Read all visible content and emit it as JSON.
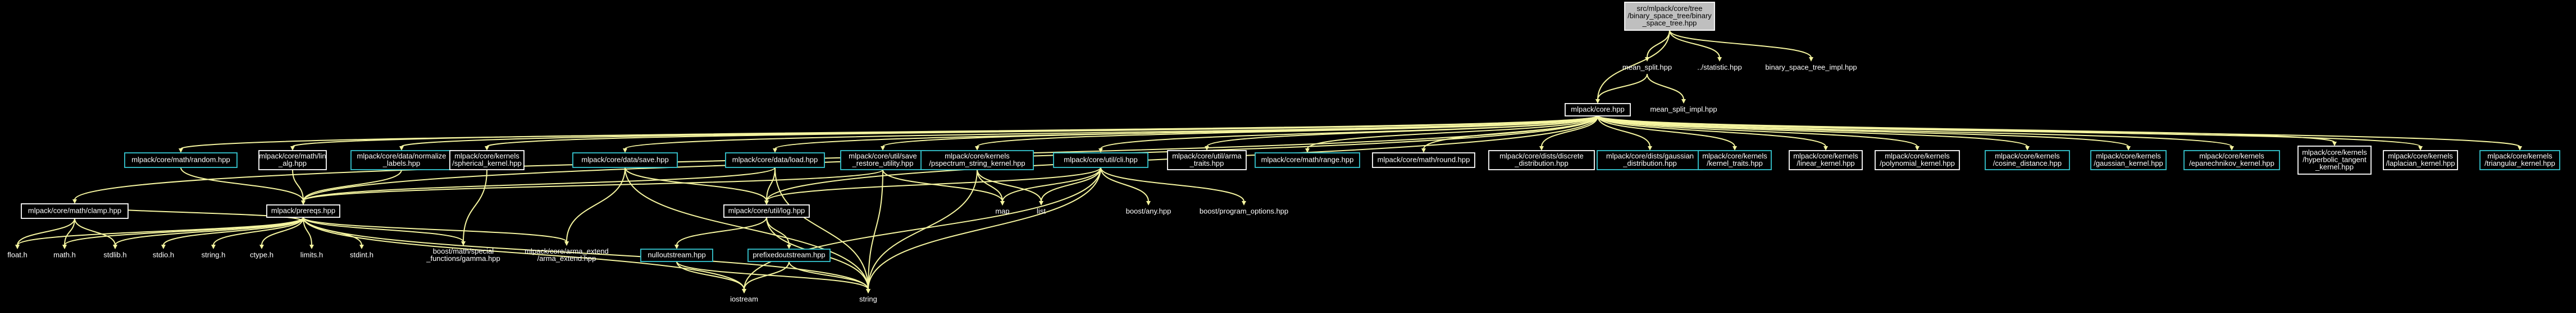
{
  "root": "src/mlpack/core/tree/binary_space_tree/binary_space_tree.hpp",
  "nodes": [
    {
      "id": "root",
      "lines": [
        "src/mlpack/core/tree",
        "/binary_space_tree/binary",
        "_space_tree.hpp"
      ],
      "style": "root"
    },
    {
      "id": "mean_split",
      "lines": [
        "mean_split.hpp"
      ],
      "style": "plain"
    },
    {
      "id": "statistic",
      "lines": [
        "../statistic.hpp"
      ],
      "style": "plain"
    },
    {
      "id": "bst_impl",
      "lines": [
        "binary_space_tree_impl.hpp"
      ],
      "style": "plain"
    },
    {
      "id": "core",
      "lines": [
        "mlpack/core.hpp"
      ],
      "style": "boxed"
    },
    {
      "id": "mean_split_impl",
      "lines": [
        "mean_split_impl.hpp"
      ],
      "style": "plain"
    },
    {
      "id": "random",
      "lines": [
        "mlpack/core/math/random.hpp"
      ],
      "style": "cyan"
    },
    {
      "id": "lin_alg",
      "lines": [
        "mlpack/core/math/lin",
        "_alg.hpp"
      ],
      "style": "boxed"
    },
    {
      "id": "normalize",
      "lines": [
        "mlpack/core/data/normalize",
        "_labels.hpp"
      ],
      "style": "cyan"
    },
    {
      "id": "spherical",
      "lines": [
        "mlpack/core/kernels",
        "/spherical_kernel.hpp"
      ],
      "style": "boxed"
    },
    {
      "id": "save",
      "lines": [
        "mlpack/core/data/save.hpp"
      ],
      "style": "cyan"
    },
    {
      "id": "load",
      "lines": [
        "mlpack/core/data/load.hpp"
      ],
      "style": "cyan"
    },
    {
      "id": "save_restore",
      "lines": [
        "mlpack/core/util/save",
        "_restore_utility.hpp"
      ],
      "style": "cyan"
    },
    {
      "id": "pspectrum",
      "lines": [
        "mlpack/core/kernels",
        "/pspectrum_string_kernel.hpp"
      ],
      "style": "cyan"
    },
    {
      "id": "cli",
      "lines": [
        "mlpack/core/util/cli.hpp"
      ],
      "style": "cyan"
    },
    {
      "id": "arma_traits",
      "lines": [
        "mlpack/core/util/arma",
        "_traits.hpp"
      ],
      "style": "boxed"
    },
    {
      "id": "range",
      "lines": [
        "mlpack/core/math/range.hpp"
      ],
      "style": "cyan"
    },
    {
      "id": "round",
      "lines": [
        "mlpack/core/math/round.hpp"
      ],
      "style": "boxed"
    },
    {
      "id": "discrete",
      "lines": [
        "mlpack/core/dists/discrete",
        "_distribution.hpp"
      ],
      "style": "boxed"
    },
    {
      "id": "gaussian_dist",
      "lines": [
        "mlpack/core/dists/gaussian",
        "_distribution.hpp"
      ],
      "style": "cyan"
    },
    {
      "id": "kernel_traits",
      "lines": [
        "mlpack/core/kernels",
        "/kernel_traits.hpp"
      ],
      "style": "cyan"
    },
    {
      "id": "linear",
      "lines": [
        "mlpack/core/kernels",
        "/linear_kernel.hpp"
      ],
      "style": "boxed"
    },
    {
      "id": "polynomial",
      "lines": [
        "mlpack/core/kernels",
        "/polynomial_kernel.hpp"
      ],
      "style": "boxed"
    },
    {
      "id": "cosine",
      "lines": [
        "mlpack/core/kernels",
        "/cosine_distance.hpp"
      ],
      "style": "cyan"
    },
    {
      "id": "gaussian_k",
      "lines": [
        "mlpack/core/kernels",
        "/gaussian_kernel.hpp"
      ],
      "style": "cyan"
    },
    {
      "id": "epan",
      "lines": [
        "mlpack/core/kernels",
        "/epanechnikov_kernel.hpp"
      ],
      "style": "cyan"
    },
    {
      "id": "hyper",
      "lines": [
        "mlpack/core/kernels",
        "/hyperbolic_tangent",
        "_kernel.hpp"
      ],
      "style": "boxed"
    },
    {
      "id": "laplace",
      "lines": [
        "mlpack/core/kernels",
        "/laplacian_kernel.hpp"
      ],
      "style": "boxed"
    },
    {
      "id": "triangular",
      "lines": [
        "mlpack/core/kernels",
        "/triangular_kernel.hpp"
      ],
      "style": "cyan"
    },
    {
      "id": "clamp",
      "lines": [
        "mlpack/core/math/clamp.hpp"
      ],
      "style": "boxed"
    },
    {
      "id": "prereqs",
      "lines": [
        "mlpack/prereqs.hpp"
      ],
      "style": "boxed"
    },
    {
      "id": "log",
      "lines": [
        "mlpack/core/util/log.hpp"
      ],
      "style": "boxed"
    },
    {
      "id": "map",
      "lines": [
        "map"
      ],
      "style": "plain"
    },
    {
      "id": "list",
      "lines": [
        "list"
      ],
      "style": "plain"
    },
    {
      "id": "boost_any",
      "lines": [
        "boost/any.hpp"
      ],
      "style": "plain"
    },
    {
      "id": "boost_po",
      "lines": [
        "boost/program_options.hpp"
      ],
      "style": "plain"
    },
    {
      "id": "nullostream",
      "lines": [
        "nulloutstream.hpp"
      ],
      "style": "cyan"
    },
    {
      "id": "prefixed",
      "lines": [
        "prefixedoutstream.hpp"
      ],
      "style": "cyan"
    },
    {
      "id": "float",
      "lines": [
        "float.h"
      ],
      "style": "plain"
    },
    {
      "id": "math",
      "lines": [
        "math.h"
      ],
      "style": "plain"
    },
    {
      "id": "stdlib",
      "lines": [
        "stdlib.h"
      ],
      "style": "plain"
    },
    {
      "id": "stdio",
      "lines": [
        "stdio.h"
      ],
      "style": "plain"
    },
    {
      "id": "string_h",
      "lines": [
        "string.h"
      ],
      "style": "plain"
    },
    {
      "id": "ctype",
      "lines": [
        "ctype.h"
      ],
      "style": "plain"
    },
    {
      "id": "limits",
      "lines": [
        "limits.h"
      ],
      "style": "plain"
    },
    {
      "id": "stdint",
      "lines": [
        "stdint.h"
      ],
      "style": "plain"
    },
    {
      "id": "boost_gamma",
      "lines": [
        "boost/math/special",
        "_functions/gamma.hpp"
      ],
      "style": "plain"
    },
    {
      "id": "arma_ext",
      "lines": [
        "mlpack/core/arma_extend",
        "/arma_extend.hpp"
      ],
      "style": "plain"
    },
    {
      "id": "iostream",
      "lines": [
        "iostream"
      ],
      "style": "plain"
    },
    {
      "id": "string",
      "lines": [
        "string"
      ],
      "style": "plain"
    }
  ],
  "edges": [
    [
      "root",
      "mean_split"
    ],
    [
      "root",
      "statistic"
    ],
    [
      "root",
      "bst_impl"
    ],
    [
      "root",
      "core"
    ],
    [
      "mean_split",
      "core"
    ],
    [
      "mean_split",
      "mean_split_impl"
    ],
    [
      "core",
      "random"
    ],
    [
      "core",
      "lin_alg"
    ],
    [
      "core",
      "normalize"
    ],
    [
      "core",
      "spherical"
    ],
    [
      "core",
      "save"
    ],
    [
      "core",
      "load"
    ],
    [
      "core",
      "save_restore"
    ],
    [
      "core",
      "pspectrum"
    ],
    [
      "core",
      "cli"
    ],
    [
      "core",
      "arma_traits"
    ],
    [
      "core",
      "range"
    ],
    [
      "core",
      "round"
    ],
    [
      "core",
      "discrete"
    ],
    [
      "core",
      "gaussian_dist"
    ],
    [
      "core",
      "kernel_traits"
    ],
    [
      "core",
      "linear"
    ],
    [
      "core",
      "polynomial"
    ],
    [
      "core",
      "cosine"
    ],
    [
      "core",
      "gaussian_k"
    ],
    [
      "core",
      "epan"
    ],
    [
      "core",
      "hyper"
    ],
    [
      "core",
      "laplace"
    ],
    [
      "core",
      "triangular"
    ],
    [
      "core",
      "clamp"
    ],
    [
      "core",
      "prereqs"
    ],
    [
      "core",
      "log"
    ],
    [
      "random",
      "prereqs"
    ],
    [
      "lin_alg",
      "prereqs"
    ],
    [
      "normalize",
      "prereqs"
    ],
    [
      "spherical",
      "boost_gamma"
    ],
    [
      "save",
      "log"
    ],
    [
      "save",
      "arma_ext"
    ],
    [
      "save",
      "string"
    ],
    [
      "load",
      "log"
    ],
    [
      "load",
      "prereqs"
    ],
    [
      "load",
      "string"
    ],
    [
      "save_restore",
      "map"
    ],
    [
      "save_restore",
      "string"
    ],
    [
      "save_restore",
      "prereqs"
    ],
    [
      "pspectrum",
      "map"
    ],
    [
      "pspectrum",
      "string"
    ],
    [
      "pspectrum",
      "list"
    ],
    [
      "cli",
      "map"
    ],
    [
      "cli",
      "list"
    ],
    [
      "cli",
      "boost_any"
    ],
    [
      "cli",
      "boost_po"
    ],
    [
      "cli",
      "iostream"
    ],
    [
      "cli",
      "string"
    ],
    [
      "cli",
      "log"
    ],
    [
      "clamp",
      "prereqs"
    ],
    [
      "clamp",
      "float"
    ],
    [
      "clamp",
      "math"
    ],
    [
      "clamp",
      "stdlib"
    ],
    [
      "prereqs",
      "float"
    ],
    [
      "prereqs",
      "math"
    ],
    [
      "prereqs",
      "stdlib"
    ],
    [
      "prereqs",
      "stdio"
    ],
    [
      "prereqs",
      "string_h"
    ],
    [
      "prereqs",
      "ctype"
    ],
    [
      "prereqs",
      "limits"
    ],
    [
      "prereqs",
      "stdint"
    ],
    [
      "prereqs",
      "boost_gamma"
    ],
    [
      "prereqs",
      "arma_ext"
    ],
    [
      "prereqs",
      "iostream"
    ],
    [
      "prereqs",
      "string"
    ],
    [
      "log",
      "nullostream"
    ],
    [
      "log",
      "prefixed"
    ],
    [
      "log",
      "string"
    ],
    [
      "nullostream",
      "iostream"
    ],
    [
      "nullostream",
      "string"
    ],
    [
      "prefixed",
      "iostream"
    ],
    [
      "prefixed",
      "string"
    ]
  ]
}
